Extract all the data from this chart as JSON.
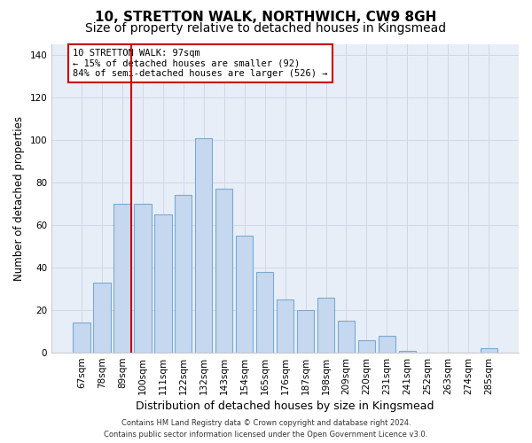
{
  "title1": "10, STRETTON WALK, NORTHWICH, CW9 8GH",
  "title2": "Size of property relative to detached houses in Kingsmead",
  "xlabel": "Distribution of detached houses by size in Kingsmead",
  "ylabel": "Number of detached properties",
  "categories": [
    "67sqm",
    "78sqm",
    "89sqm",
    "100sqm",
    "111sqm",
    "122sqm",
    "132sqm",
    "143sqm",
    "154sqm",
    "165sqm",
    "176sqm",
    "187sqm",
    "198sqm",
    "209sqm",
    "220sqm",
    "231sqm",
    "241sqm",
    "252sqm",
    "263sqm",
    "274sqm",
    "285sqm"
  ],
  "values": [
    14,
    33,
    70,
    70,
    65,
    74,
    101,
    77,
    55,
    38,
    25,
    20,
    26,
    15,
    6,
    8,
    1,
    0,
    0,
    0,
    2
  ],
  "bar_color": "#c5d8f0",
  "bar_edge_color": "#7aaad0",
  "grid_color": "#d0d8e8",
  "bg_color": "#e8eef8",
  "annotation_line1": "10 STRETTON WALK: 97sqm",
  "annotation_line2": "← 15% of detached houses are smaller (92)",
  "annotation_line3": "84% of semi-detached houses are larger (526) →",
  "annotation_box_color": "#ffffff",
  "annotation_box_edge": "#cc0000",
  "red_line_color": "#cc0000",
  "footer1": "Contains HM Land Registry data © Crown copyright and database right 2024.",
  "footer2": "Contains public sector information licensed under the Open Government Licence v3.0.",
  "ylim": [
    0,
    145
  ],
  "red_line_index": 2,
  "title1_fontsize": 11,
  "title2_fontsize": 10,
  "xlabel_fontsize": 9,
  "ylabel_fontsize": 8.5,
  "tick_fontsize": 7.5,
  "footer_fontsize": 6,
  "annot_fontsize": 7.5
}
